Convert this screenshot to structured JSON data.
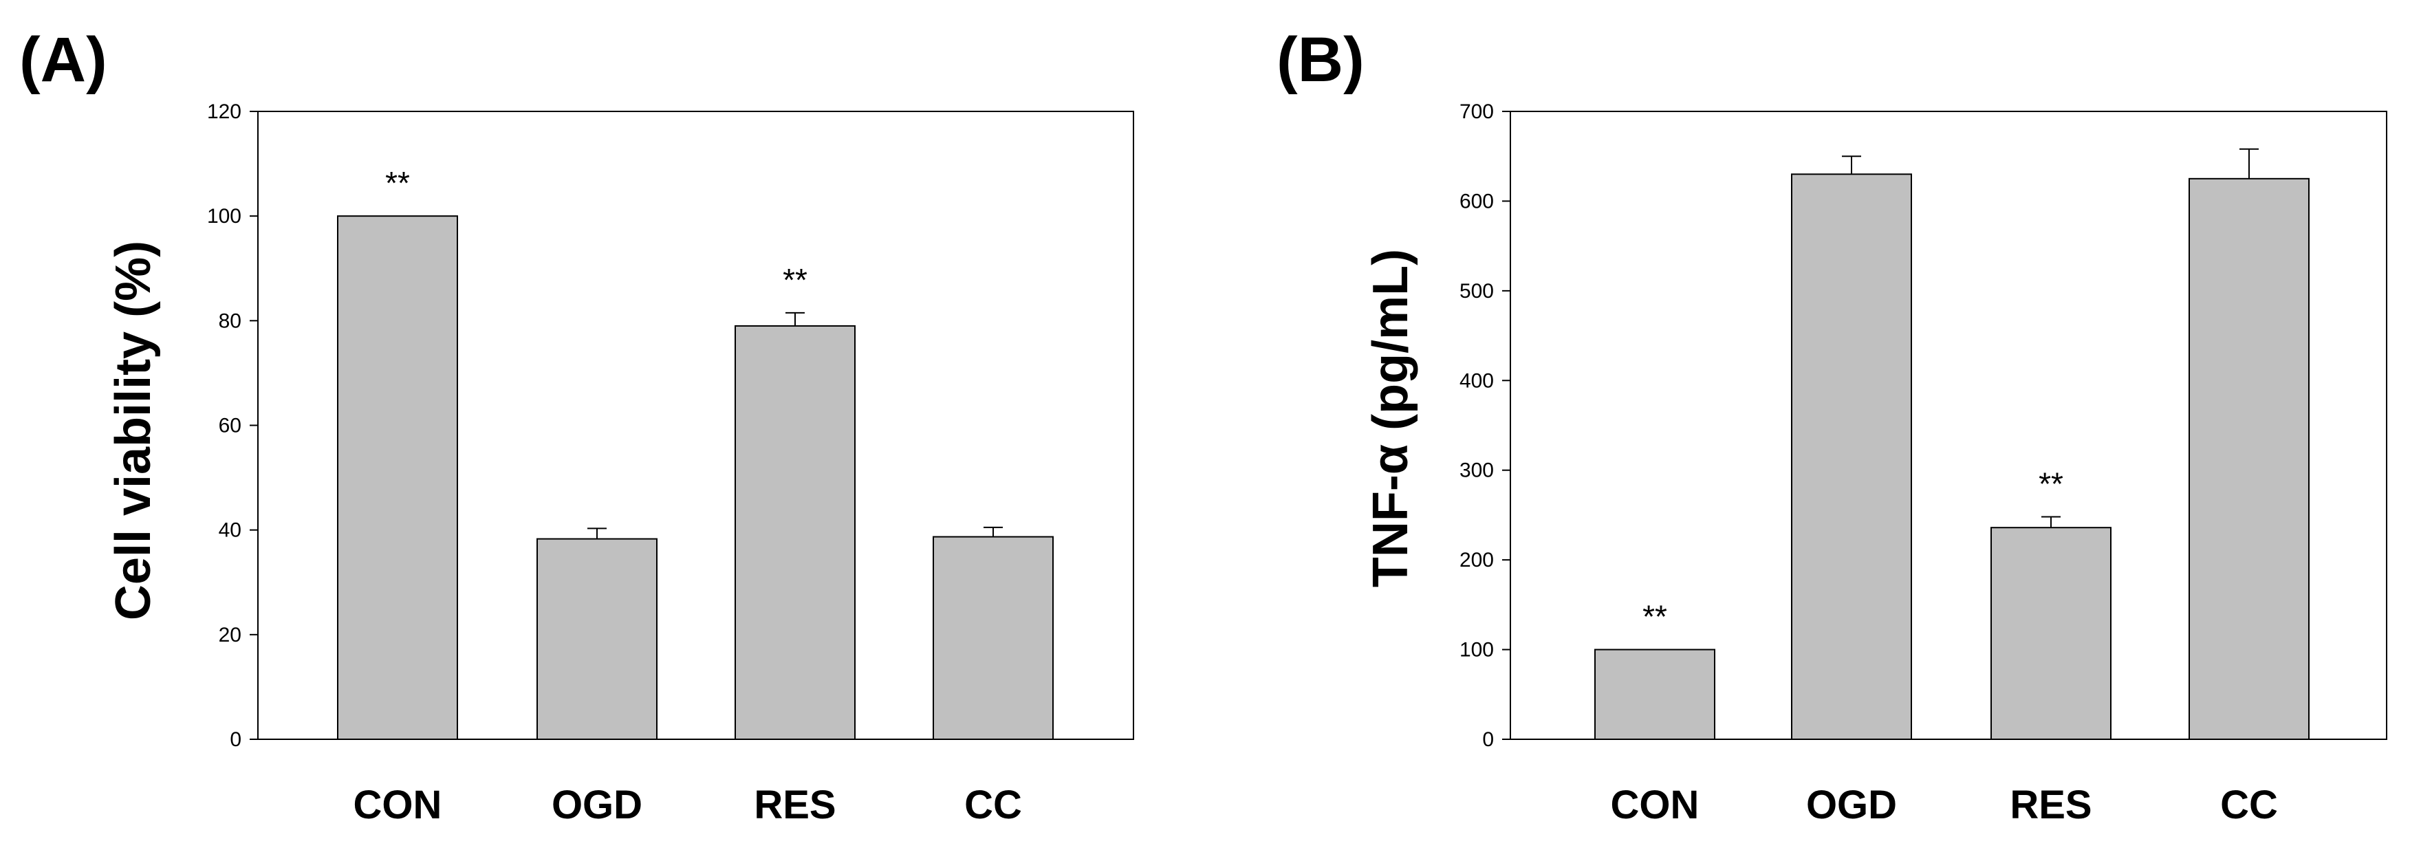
{
  "colors": {
    "bar": "#c0c0c0",
    "stroke": "#000000",
    "background": "#ffffff"
  },
  "chart_data": [
    {
      "type": "bar",
      "panel_label": "(A)",
      "ylabel": "Cell viability (%)",
      "xlabel": "",
      "categories": [
        "CON",
        "OGD",
        "RES",
        "CC"
      ],
      "values": [
        100,
        38.3,
        79,
        38.7
      ],
      "errors": [
        0,
        2,
        2.5,
        1.8
      ],
      "annotations": [
        "**",
        "",
        "**",
        ""
      ],
      "ylim": [
        0,
        120
      ],
      "yticks": [
        0,
        20,
        40,
        60,
        80,
        100,
        120
      ],
      "grid": false
    },
    {
      "type": "bar",
      "panel_label": "(B)",
      "ylabel": "TNF-α (pg/mL)",
      "xlabel": "",
      "categories": [
        "CON",
        "OGD",
        "RES",
        "CC"
      ],
      "values": [
        100,
        630,
        236,
        625
      ],
      "errors": [
        0,
        20,
        12,
        33
      ],
      "annotations": [
        "**",
        "",
        "**",
        ""
      ],
      "ylim": [
        0,
        700
      ],
      "yticks": [
        0,
        100,
        200,
        300,
        400,
        500,
        600,
        700
      ],
      "grid": false
    }
  ]
}
